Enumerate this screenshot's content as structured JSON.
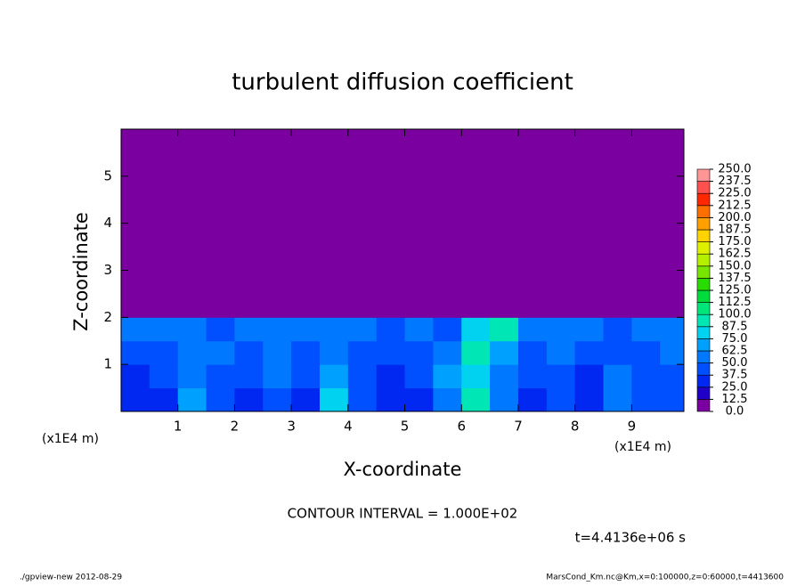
{
  "chart_data": {
    "type": "contour",
    "title": "turbulent diffusion coefficient",
    "xlabel": "X-coordinate",
    "ylabel": "Z-coordinate",
    "x_unit_left": "(x1E4 m)",
    "x_unit_right": "(x1E4 m)",
    "contour_interval": "CONTOUR INTERVAL = 1.000E+02",
    "time_label": "t=4.4136e+06 s",
    "footer_left": "./gpview-new  2012-08-29",
    "footer_right": "MarsCond_Km.nc@Km,x=0:100000,z=0:60000,t=4413600",
    "xlim": [
      0,
      9.92
    ],
    "ylim": [
      0,
      6
    ],
    "xticks": [
      1,
      2,
      3,
      4,
      5,
      6,
      7,
      8,
      9
    ],
    "yticks": [
      1,
      2,
      3,
      4,
      5
    ],
    "x": [
      0.25,
      0.75,
      1.25,
      1.75,
      2.25,
      2.75,
      3.25,
      3.75,
      4.25,
      4.75,
      5.25,
      5.75,
      6.25,
      6.75,
      7.25,
      7.75,
      8.25,
      8.75,
      9.25,
      9.75
    ],
    "y": [
      0.25,
      0.75,
      1.25,
      1.75,
      2.25,
      2.75,
      3.25,
      3.75,
      4.25,
      4.75,
      5.25,
      5.75
    ],
    "z": [
      [
        30,
        35,
        70,
        45,
        30,
        40,
        35,
        80,
        40,
        30,
        35,
        60,
        90,
        50,
        35,
        40,
        30,
        55,
        40,
        45
      ],
      [
        35,
        40,
        60,
        40,
        45,
        50,
        40,
        70,
        40,
        35,
        40,
        70,
        85,
        60,
        40,
        45,
        35,
        50,
        40,
        40
      ],
      [
        40,
        45,
        55,
        50,
        45,
        55,
        45,
        60,
        45,
        40,
        45,
        55,
        95,
        70,
        45,
        50,
        40,
        45,
        45,
        50
      ],
      [
        50,
        55,
        50,
        45,
        50,
        60,
        50,
        55,
        50,
        45,
        50,
        45,
        80,
        90,
        60,
        55,
        50,
        45,
        50,
        55
      ],
      [
        0,
        0,
        0,
        0,
        0,
        0,
        0,
        0,
        0,
        0,
        0,
        0,
        0,
        0,
        0,
        0,
        0,
        0,
        0,
        0
      ],
      [
        0,
        0,
        0,
        0,
        0,
        0,
        0,
        0,
        0,
        0,
        0,
        0,
        0,
        0,
        0,
        0,
        0,
        0,
        0,
        0
      ],
      [
        0,
        0,
        0,
        0,
        0,
        0,
        0,
        0,
        0,
        0,
        0,
        0,
        0,
        0,
        0,
        0,
        0,
        0,
        0,
        0
      ],
      [
        0,
        0,
        0,
        0,
        0,
        0,
        0,
        0,
        0,
        0,
        0,
        0,
        0,
        0,
        0,
        0,
        0,
        0,
        0,
        0
      ],
      [
        0,
        0,
        0,
        0,
        0,
        0,
        0,
        0,
        0,
        0,
        0,
        0,
        0,
        0,
        0,
        0,
        0,
        0,
        0,
        0
      ],
      [
        0,
        0,
        0,
        0,
        0,
        0,
        0,
        0,
        0,
        0,
        0,
        0,
        0,
        0,
        0,
        0,
        0,
        0,
        0,
        0
      ],
      [
        0,
        0,
        0,
        0,
        0,
        0,
        0,
        0,
        0,
        0,
        0,
        0,
        0,
        0,
        0,
        0,
        0,
        0,
        0,
        0
      ],
      [
        0,
        0,
        0,
        0,
        0,
        0,
        0,
        0,
        0,
        0,
        0,
        0,
        0,
        0,
        0,
        0,
        0,
        0,
        0,
        0
      ]
    ],
    "levels": [
      {
        "value": 0,
        "label": "0.0"
      },
      12.5,
      {
        "value": 25,
        "label": "25.0"
      },
      37.5,
      {
        "value": 50,
        "label": "50.0"
      },
      62.5,
      {
        "value": 75,
        "label": "75.0"
      },
      87.5,
      {
        "value": 100,
        "label": "100.0"
      },
      112.5,
      {
        "value": 125,
        "label": "125.0"
      },
      137.5,
      {
        "value": 150,
        "label": "150.0"
      },
      162.5,
      {
        "value": 175,
        "label": "175.0"
      },
      187.5,
      {
        "value": 200,
        "label": "200.0"
      },
      212.5,
      {
        "value": 225,
        "label": "225.0"
      },
      237.5,
      {
        "value": 250,
        "label": "250.0"
      }
    ],
    "colors": [
      "#7a00a0",
      "#2000c8",
      "#0028f0",
      "#0050ff",
      "#0078ff",
      "#00a0ff",
      "#00d2f0",
      "#00e6b4",
      "#00e678",
      "#00dc3c",
      "#28dc00",
      "#78e600",
      "#b4f000",
      "#dcf000",
      "#ffd200",
      "#ffa000",
      "#ff6e00",
      "#ff2800",
      "#ff5050",
      "#ff9696"
    ]
  }
}
